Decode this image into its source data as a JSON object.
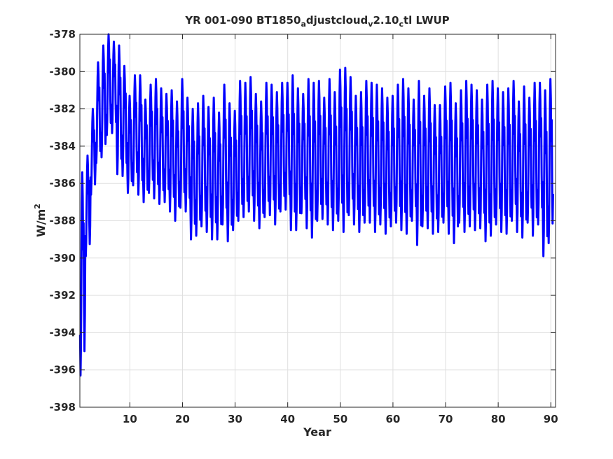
{
  "chart_data": {
    "type": "line",
    "title": {
      "parts": [
        {
          "text": "YR 001-090 BT1850",
          "shift": "none"
        },
        {
          "text": "a",
          "shift": "sub"
        },
        {
          "text": "djustcloud",
          "shift": "none"
        },
        {
          "text": "v",
          "shift": "sub"
        },
        {
          "text": "2.10",
          "shift": "none"
        },
        {
          "text": "c",
          "shift": "sub"
        },
        {
          "text": "tl LWUP",
          "shift": "none"
        }
      ]
    },
    "xlabel": "Year",
    "ylabel": {
      "base": "W/m",
      "sup": "2"
    },
    "xlim": [
      0.5,
      90.9
    ],
    "ylim": [
      -398,
      -378
    ],
    "xticks": [
      10,
      20,
      30,
      40,
      50,
      60,
      70,
      80,
      90
    ],
    "xtick_labels": [
      "10",
      "20",
      "30",
      "40",
      "50",
      "60",
      "70",
      "80",
      "90"
    ],
    "yticks": [
      -398,
      -396,
      -394,
      -392,
      -390,
      -388,
      -386,
      -384,
      -382,
      -380,
      -378
    ],
    "ytick_labels": [
      "-398",
      "-396",
      "-394",
      "-392",
      "-390",
      "-388",
      "-386",
      "-384",
      "-382",
      "-380",
      "-378"
    ],
    "grid": true,
    "series": [
      {
        "color": "#0000ff",
        "sampling": "monthly",
        "x_start": 0.5417,
        "x_step": 0.0833,
        "year_extremes": {
          "min": [
            -396.3,
            -389.9,
            -386.6,
            -384.9,
            -384.6,
            -383.4,
            -383.3,
            -385.5,
            -385.6,
            -386.5,
            -386.1,
            -386.6,
            -387.0,
            -386.5,
            -386.8,
            -387.1,
            -387.0,
            -387.5,
            -388.0,
            -387.3,
            -387.5,
            -389.0,
            -388.8,
            -388.3,
            -388.6,
            -389.0,
            -389.0,
            -388.2,
            -389.1,
            -388.5,
            -388.0,
            -387.8,
            -387.5,
            -388.0,
            -388.4,
            -387.8,
            -387.7,
            -388.2,
            -387.5,
            -387.4,
            -388.5,
            -388.5,
            -387.6,
            -388.4,
            -388.9,
            -388.0,
            -387.9,
            -388.2,
            -388.5,
            -388.0,
            -388.6,
            -387.7,
            -388.2,
            -388.6,
            -388.1,
            -388.1,
            -388.6,
            -388.2,
            -388.7,
            -388.3,
            -388.1,
            -388.5,
            -388.7,
            -388.0,
            -389.3,
            -388.3,
            -388.4,
            -388.7,
            -388.6,
            -388.1,
            -388.7,
            -389.2,
            -388.1,
            -388.6,
            -388.3,
            -388.5,
            -388.4,
            -389.1,
            -388.8,
            -388.2,
            -388.6,
            -388.7,
            -388.0,
            -388.6,
            -388.9,
            -388.1,
            -388.8,
            -388.2,
            -389.9,
            -389.2
          ],
          "max": [
            -385.4,
            -384.5,
            -382.0,
            -379.5,
            -378.6,
            -378.0,
            -378.4,
            -378.6,
            -379.7,
            -381.3,
            -380.2,
            -380.2,
            -381.5,
            -380.7,
            -380.4,
            -380.9,
            -381.2,
            -381.0,
            -381.6,
            -380.4,
            -381.4,
            -382.0,
            -381.7,
            -381.3,
            -381.9,
            -381.4,
            -382.2,
            -380.7,
            -381.7,
            -382.1,
            -380.5,
            -380.6,
            -380.3,
            -381.2,
            -381.6,
            -380.6,
            -380.7,
            -381.1,
            -380.6,
            -380.6,
            -380.2,
            -380.9,
            -381.2,
            -380.4,
            -380.6,
            -380.5,
            -381.4,
            -380.4,
            -381.1,
            -379.9,
            -379.8,
            -380.3,
            -381.3,
            -381.1,
            -380.5,
            -380.6,
            -380.7,
            -380.9,
            -381.4,
            -381.3,
            -380.7,
            -380.4,
            -380.9,
            -381.5,
            -380.5,
            -381.3,
            -380.9,
            -381.8,
            -381.8,
            -380.8,
            -380.6,
            -381.7,
            -381.0,
            -380.5,
            -380.7,
            -381.0,
            -381.5,
            -380.7,
            -380.5,
            -380.9,
            -381.1,
            -380.9,
            -380.5,
            -381.6,
            -380.8,
            -381.4,
            -380.6,
            -380.6,
            -381.0,
            -380.4
          ]
        },
        "annual_cycle_weights": [
          0.2,
          0.0,
          0.15,
          0.55,
          0.85,
          1.0,
          0.88,
          0.62,
          0.75,
          0.35,
          0.12,
          0.3
        ]
      }
    ]
  }
}
